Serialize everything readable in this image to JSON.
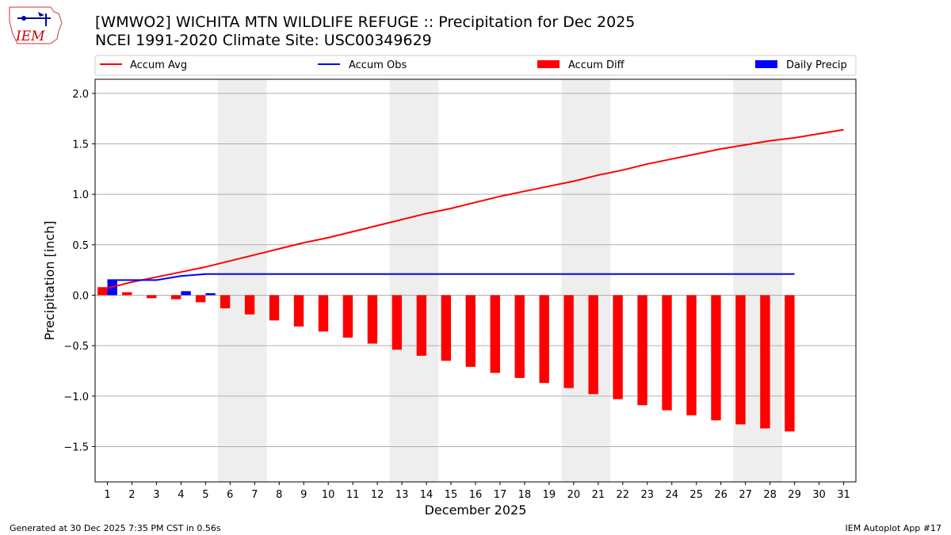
{
  "header": {
    "title_line1": "[WMWO2] WICHITA MTN WILDLIFE REFUGE :: Precipitation for Dec 2025",
    "title_line2": "NCEI 1991-2020 Climate Site: USC00349629"
  },
  "logo": {
    "text": "IEM"
  },
  "footer": {
    "generated": "Generated at 30 Dec 2025 7:35 PM CST in 0.56s",
    "app": "IEM Autoplot App #17"
  },
  "chart_data": {
    "type": "bar",
    "xlabel": "December 2025",
    "ylabel": "Precipitation [inch]",
    "x": [
      1,
      2,
      3,
      4,
      5,
      6,
      7,
      8,
      9,
      10,
      11,
      12,
      13,
      14,
      15,
      16,
      17,
      18,
      19,
      20,
      21,
      22,
      23,
      24,
      25,
      26,
      27,
      28,
      29,
      30,
      31
    ],
    "xlim": [
      0.5,
      31.5
    ],
    "ylim": [
      -1.85,
      2.14
    ],
    "yticks": [
      -1.5,
      -1.0,
      -0.5,
      0.0,
      0.5,
      1.0,
      1.5,
      2.0
    ],
    "ytick_labels": [
      "−1.5",
      "−1.0",
      "−0.5",
      "0.0",
      "0.5",
      "1.0",
      "1.5",
      "2.0"
    ],
    "grid": "horizontal",
    "legend_position": "top",
    "weekend_shading": [
      [
        6,
        7
      ],
      [
        13,
        14
      ],
      [
        20,
        21
      ],
      [
        27,
        28
      ]
    ],
    "colors": {
      "avg": "#ff0000",
      "obs": "#0000ff",
      "diff": "#ff0000",
      "daily": "#0000ff",
      "weekend": "#eeeeee",
      "grid": "#b0b0b0"
    },
    "series": [
      {
        "name": "Accum Avg",
        "kind": "line",
        "x": [
          1,
          2,
          3,
          4,
          5,
          6,
          7,
          8,
          9,
          10,
          11,
          12,
          13,
          14,
          15,
          16,
          17,
          18,
          19,
          20,
          21,
          22,
          23,
          24,
          25,
          26,
          27,
          28,
          29,
          30,
          31
        ],
        "values": [
          0.07,
          0.13,
          0.18,
          0.23,
          0.28,
          0.34,
          0.4,
          0.46,
          0.52,
          0.57,
          0.63,
          0.69,
          0.75,
          0.81,
          0.86,
          0.92,
          0.98,
          1.03,
          1.08,
          1.13,
          1.19,
          1.24,
          1.3,
          1.35,
          1.4,
          1.45,
          1.49,
          1.53,
          1.56,
          1.6,
          1.64
        ]
      },
      {
        "name": "Accum Obs",
        "kind": "line",
        "x": [
          1,
          2,
          3,
          4,
          5,
          6,
          7,
          8,
          9,
          10,
          11,
          12,
          13,
          14,
          15,
          16,
          17,
          18,
          19,
          20,
          21,
          22,
          23,
          24,
          25,
          26,
          27,
          28,
          29
        ],
        "values": [
          0.15,
          0.15,
          0.15,
          0.19,
          0.21,
          0.21,
          0.21,
          0.21,
          0.21,
          0.21,
          0.21,
          0.21,
          0.21,
          0.21,
          0.21,
          0.21,
          0.21,
          0.21,
          0.21,
          0.21,
          0.21,
          0.21,
          0.21,
          0.21,
          0.21,
          0.21,
          0.21,
          0.21,
          0.21
        ]
      },
      {
        "name": "Accum Diff",
        "kind": "bar",
        "x": [
          1,
          2,
          3,
          4,
          5,
          6,
          7,
          8,
          9,
          10,
          11,
          12,
          13,
          14,
          15,
          16,
          17,
          18,
          19,
          20,
          21,
          22,
          23,
          24,
          25,
          26,
          27,
          28,
          29
        ],
        "values": [
          0.08,
          0.03,
          -0.03,
          -0.04,
          -0.07,
          -0.13,
          -0.19,
          -0.25,
          -0.31,
          -0.36,
          -0.42,
          -0.48,
          -0.54,
          -0.6,
          -0.65,
          -0.71,
          -0.77,
          -0.82,
          -0.87,
          -0.92,
          -0.98,
          -1.03,
          -1.09,
          -1.14,
          -1.19,
          -1.24,
          -1.28,
          -1.32,
          -1.35
        ]
      },
      {
        "name": "Daily Precip",
        "kind": "bar",
        "x": [
          1,
          4,
          5
        ],
        "values": [
          0.15,
          0.04,
          0.02
        ]
      }
    ]
  }
}
